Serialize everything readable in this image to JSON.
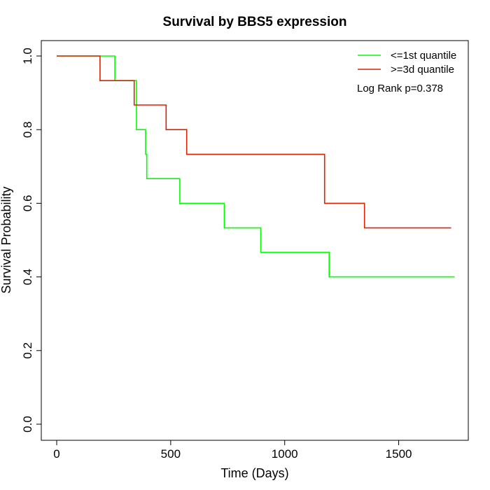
{
  "chart_data": {
    "type": "line",
    "step": true,
    "title": "Survival by BBS5 expression",
    "xlabel": "Time (Days)",
    "ylabel": "Survival Probability",
    "xlim": [
      0,
      1800
    ],
    "ylim": [
      0,
      1.0
    ],
    "xticks": [
      0,
      500,
      1000,
      1500
    ],
    "xtick_labels": [
      "0",
      "500",
      "1000",
      "1500"
    ],
    "yticks": [
      0.0,
      0.2,
      0.4,
      0.6,
      0.8,
      1.0
    ],
    "ytick_labels": [
      "0.0",
      "0.2",
      "0.4",
      "0.6",
      "0.8",
      "1.0"
    ],
    "grid": false,
    "legend_position": "top-right",
    "annotation": "Log Rank p=0.378",
    "series": [
      {
        "name": "<=1st quantile",
        "color": "#00ff00",
        "x": [
          0,
          255,
          350,
          390,
          395,
          540,
          735,
          895,
          1195,
          1745
        ],
        "y": [
          1.0,
          0.933,
          0.8,
          0.733,
          0.667,
          0.6,
          0.533,
          0.467,
          0.4,
          0.4
        ]
      },
      {
        "name": ">=3d quantile",
        "color": "#dd2200",
        "x": [
          0,
          190,
          340,
          480,
          570,
          1175,
          1350,
          1730
        ],
        "y": [
          1.0,
          0.933,
          0.867,
          0.8,
          0.733,
          0.6,
          0.533,
          0.533
        ]
      }
    ]
  }
}
